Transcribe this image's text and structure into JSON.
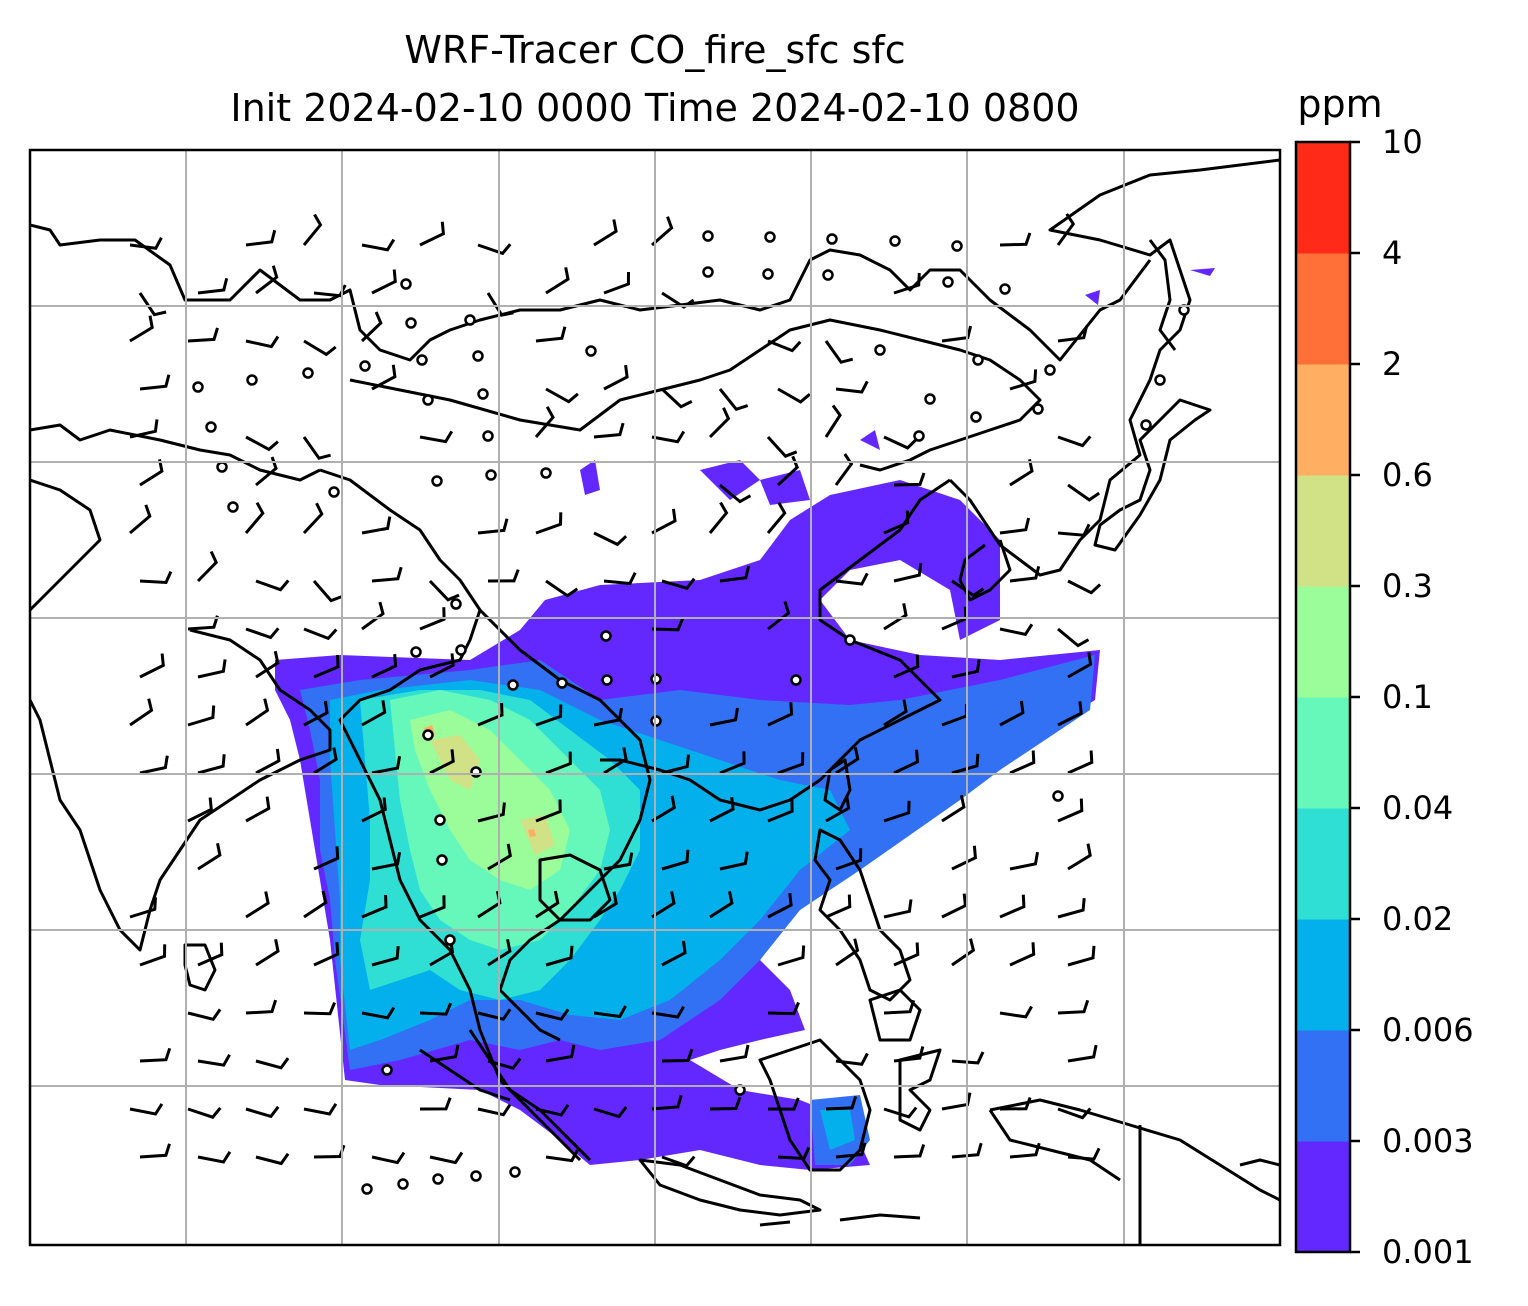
{
  "title": {
    "line1": "WRF-Tracer CO_fire_sfc sfc",
    "line2": "Init 2024-02-10 0000 Time 2024-02-10 0800"
  },
  "colorbar": {
    "unit": "ppm",
    "ticks": [
      "0.001",
      "0.003",
      "0.006",
      "0.02",
      "0.04",
      "0.1",
      "0.3",
      "0.6",
      "2",
      "4",
      "10"
    ],
    "colors": [
      "#6328ff",
      "#3271f4",
      "#04b0eb",
      "#2fdfd3",
      "#66f8ba",
      "#9bfc9a",
      "#d1e185",
      "#ffae62",
      "#ff7038",
      "#ff2a17"
    ]
  },
  "map": {
    "projection_grid": "lat-lon gridlines",
    "features": [
      "coastlines",
      "country borders",
      "wind barbs",
      "calm wind circles"
    ],
    "gridline_color": "#b0b0b0"
  }
}
